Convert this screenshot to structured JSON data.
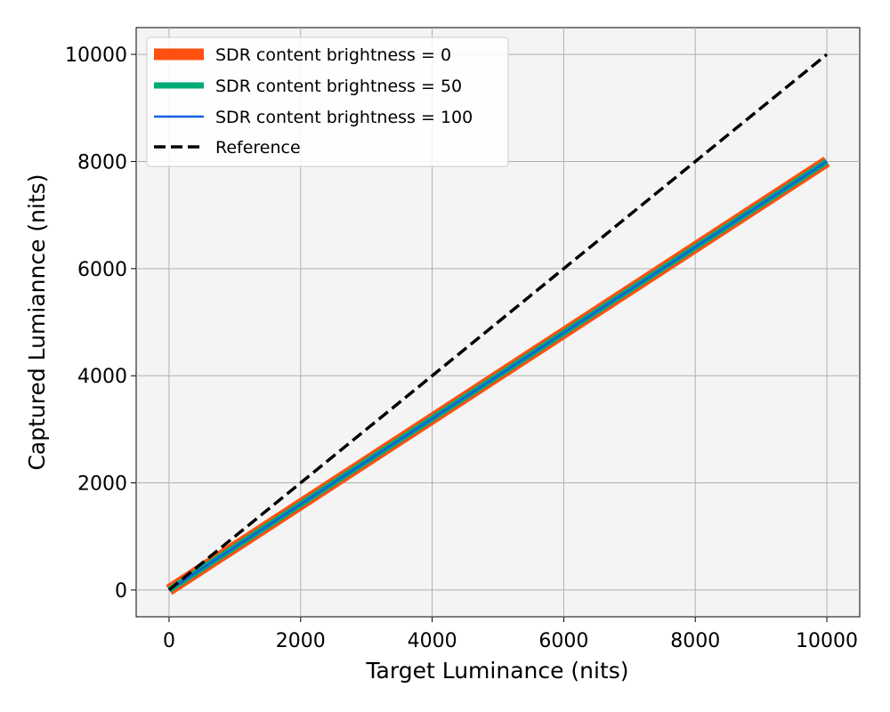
{
  "chart_data": {
    "type": "line",
    "xlabel": "Target Luminance (nits)",
    "ylabel": "Captured Lumiannce (nits)",
    "xlim": [
      -500,
      10500
    ],
    "ylim": [
      -500,
      10500
    ],
    "xticks": [
      0,
      2000,
      4000,
      6000,
      8000,
      10000
    ],
    "yticks": [
      0,
      2000,
      4000,
      6000,
      8000,
      10000
    ],
    "grid": true,
    "legend_position": "top-left",
    "series": [
      {
        "name": "SDR content brightness = 0",
        "color": "#ff5010",
        "style": "solid",
        "weight": "thick",
        "x": [
          0,
          10000
        ],
        "y": [
          0,
          8000
        ]
      },
      {
        "name": "SDR content brightness = 50",
        "color": "#00aa77",
        "style": "solid",
        "weight": "medium",
        "x": [
          0,
          10000
        ],
        "y": [
          0,
          8000
        ]
      },
      {
        "name": "SDR content brightness = 100",
        "color": "#1060e0",
        "style": "solid",
        "weight": "thin",
        "x": [
          0,
          10000
        ],
        "y": [
          0,
          8000
        ]
      },
      {
        "name": "Reference",
        "color": "#000000",
        "style": "dashed",
        "weight": "medium",
        "x": [
          0,
          10000
        ],
        "y": [
          0,
          10000
        ]
      }
    ]
  }
}
